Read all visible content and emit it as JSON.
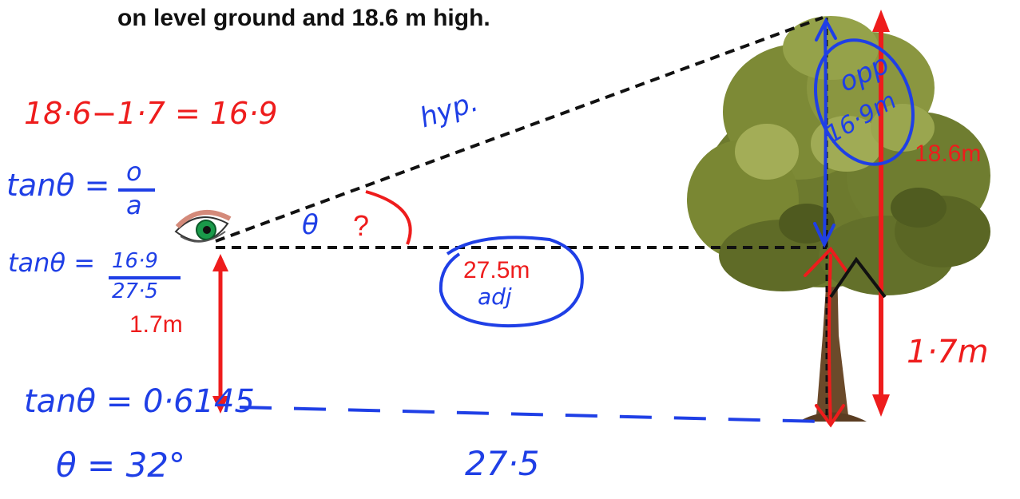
{
  "diagram": {
    "title": "on level ground and 18.6 m high.",
    "labels": {
      "tree_height": "18.6m",
      "adjacent": "27.5m",
      "eye_height": "1.7m",
      "angle_unknown": "?"
    },
    "handwriting": {
      "subtraction": "18·6−1·7 = 16·9",
      "hyp": "hyp.",
      "opp": "opp",
      "opp_value": "16·9m",
      "tan_formula_left": "tanθ =",
      "tan_formula_num": "o",
      "tan_formula_den": "a",
      "tan_fraction_left": "tanθ =",
      "tan_fraction_num": "16·9",
      "tan_fraction_den": "27·5",
      "theta": "θ",
      "adj": "adj",
      "tan_value": "tanθ = 0·6145",
      "base_length": "27·5",
      "theta_result": "θ = 32°",
      "eye_height_right": "1·7m"
    },
    "colors": {
      "typed_red": "#ee1c1c",
      "ink_blue": "#1f3fe6",
      "dashed_line": "#111111"
    },
    "icons": [
      "eye-icon",
      "tree-icon"
    ]
  }
}
